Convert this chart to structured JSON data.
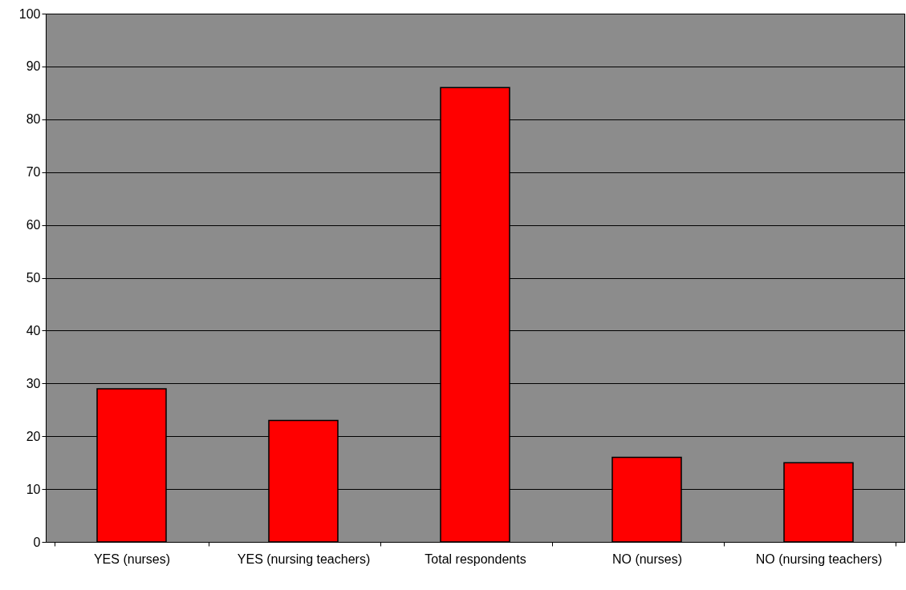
{
  "chart_data": {
    "type": "bar",
    "categories": [
      "YES (nurses)",
      "YES (nursing teachers)",
      "Total respondents",
      "NO (nurses)",
      "NO (nursing teachers)"
    ],
    "values": [
      29,
      23,
      86,
      16,
      15
    ],
    "color": "#ff0000",
    "ylim": [
      0,
      100
    ],
    "yticks": [
      0,
      10,
      20,
      30,
      40,
      50,
      60,
      70,
      80,
      90,
      100
    ],
    "grid": "y"
  }
}
